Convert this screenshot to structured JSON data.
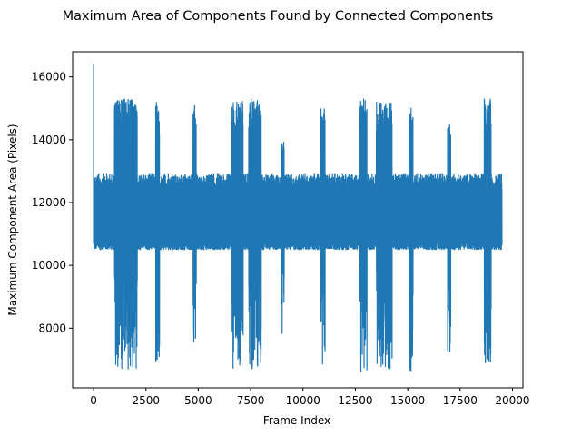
{
  "chart_data": {
    "type": "line",
    "title": "Maximum Area of Components Found by Connected Components",
    "xlabel": "Frame Index",
    "ylabel": "Maximum Component Area (Pixels)",
    "xlim": [
      -1000,
      20500
    ],
    "ylim": [
      6100,
      16800
    ],
    "xticks": [
      0,
      2500,
      5000,
      7500,
      10000,
      12500,
      15000,
      17500,
      20000
    ],
    "yticks": [
      8000,
      10000,
      12000,
      14000,
      16000
    ],
    "grid": false,
    "legend": "none",
    "series_color": "#1f77b4",
    "frame_count": 19500,
    "baseline": {
      "low": 10500,
      "mean": 11600,
      "high": 12900
    },
    "initial_peak": {
      "x": 0,
      "y": 16400
    },
    "spike_regions": [
      {
        "x_start": 1000,
        "x_end": 2100,
        "high": 15300,
        "low": 6700
      },
      {
        "x_start": 2950,
        "x_end": 3150,
        "high": 15200,
        "low": 6900
      },
      {
        "x_start": 4750,
        "x_end": 4900,
        "high": 15300,
        "low": 6950
      },
      {
        "x_start": 6600,
        "x_end": 7150,
        "high": 15300,
        "low": 6700
      },
      {
        "x_start": 7400,
        "x_end": 8000,
        "high": 15300,
        "low": 6700
      },
      {
        "x_start": 8950,
        "x_end": 9100,
        "high": 14000,
        "low": 6900
      },
      {
        "x_start": 10850,
        "x_end": 11050,
        "high": 15000,
        "low": 6850
      },
      {
        "x_start": 12700,
        "x_end": 13050,
        "high": 15300,
        "low": 6600
      },
      {
        "x_start": 13500,
        "x_end": 14250,
        "high": 15200,
        "low": 6700
      },
      {
        "x_start": 15050,
        "x_end": 15250,
        "high": 15000,
        "low": 6600
      },
      {
        "x_start": 16900,
        "x_end": 17050,
        "high": 14600,
        "low": 7100
      },
      {
        "x_start": 18650,
        "x_end": 19000,
        "high": 15300,
        "low": 6700
      }
    ]
  }
}
